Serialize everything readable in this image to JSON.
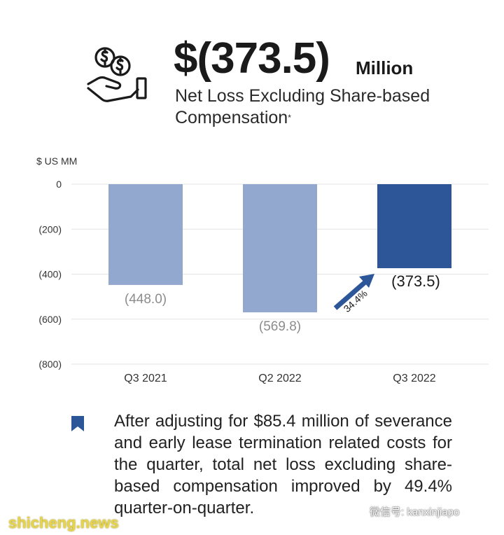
{
  "header": {
    "value": "$(373.5)",
    "unit": "Million",
    "subtitle": "Net Loss Excluding Share-based Compensation",
    "subtitle_mark": "*",
    "icon": "money-hand-icon"
  },
  "chart_data": {
    "type": "bar",
    "unit_label": "$ US MM",
    "categories": [
      "Q3 2021",
      "Q2 2022",
      "Q3 2022"
    ],
    "values": [
      -448.0,
      -569.8,
      -373.5
    ],
    "data_labels": [
      "(448.0)",
      "(569.8)",
      "(373.5)"
    ],
    "y_ticks": [
      0,
      -200,
      -400,
      -600,
      -800
    ],
    "y_tick_labels": [
      "0",
      "(200)",
      "(400)",
      "(600)",
      "(800)"
    ],
    "ylim": [
      -800,
      0
    ],
    "grid": true,
    "annotation": "34.4%",
    "colors": {
      "past": "#93a8cf",
      "current": "#2d5699",
      "label_past": "#8c8c8c",
      "label_current": "#1a1a1a",
      "grid": "#e3e3e3"
    }
  },
  "note": {
    "icon": "bookmark-icon",
    "text": "After adjusting for $85.4 million of severance and early lease termination related costs for the quarter, total net loss excluding share-based compensation improved by 49.4% quarter-on-quarter."
  },
  "watermarks": {
    "left": "shicheng.news",
    "right": "微信号: kanxinjiapo"
  }
}
